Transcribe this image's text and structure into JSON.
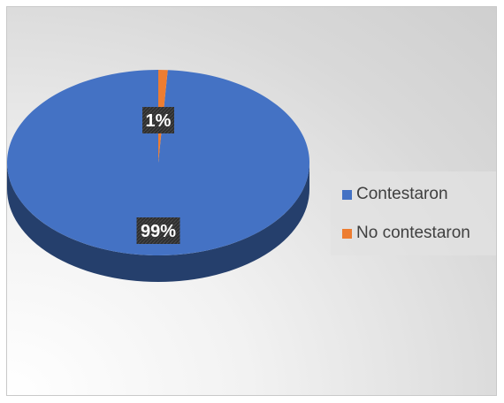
{
  "chart_data": {
    "type": "pie",
    "categories": [
      "Contestaron",
      "No contestaron"
    ],
    "values": [
      99,
      1
    ],
    "data_labels": [
      "99%",
      "1%"
    ],
    "colors": [
      "#4472C4",
      "#ED7D31"
    ],
    "legend_position": "right",
    "style": "3d"
  }
}
